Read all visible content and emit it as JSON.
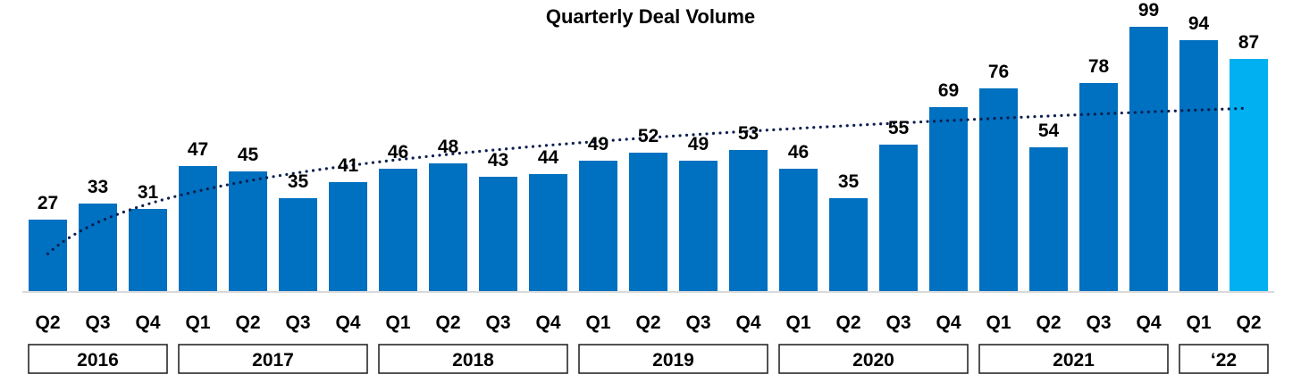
{
  "chart_data": {
    "type": "bar",
    "title": "Quarterly Deal Volume",
    "categories": [
      "Q2",
      "Q3",
      "Q4",
      "Q1",
      "Q2",
      "Q3",
      "Q4",
      "Q1",
      "Q2",
      "Q3",
      "Q4",
      "Q1",
      "Q2",
      "Q3",
      "Q4",
      "Q1",
      "Q2",
      "Q3",
      "Q4",
      "Q1",
      "Q2",
      "Q3",
      "Q4",
      "Q1",
      "Q2"
    ],
    "values": [
      27,
      33,
      31,
      47,
      45,
      35,
      41,
      46,
      48,
      43,
      44,
      49,
      52,
      49,
      53,
      46,
      35,
      55,
      69,
      76,
      54,
      78,
      99,
      94,
      87
    ],
    "year_groups": [
      {
        "label": "2016",
        "count": 3
      },
      {
        "label": "2017",
        "count": 4
      },
      {
        "label": "2018",
        "count": 4
      },
      {
        "label": "2019",
        "count": 4
      },
      {
        "label": "2020",
        "count": 4
      },
      {
        "label": "2021",
        "count": 4
      },
      {
        "label": "‘22",
        "count": 2
      }
    ],
    "ylim": [
      0,
      100
    ],
    "grid": false,
    "trendline": {
      "style": "dotted",
      "kind": "logarithmic"
    },
    "colors": {
      "bar": "#0070C0",
      "highlight_bar": "#00B0F0",
      "trend": "#0D1F4F",
      "baseline": "#D9D9D9"
    },
    "highlight_last": true
  }
}
